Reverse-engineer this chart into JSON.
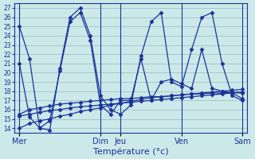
{
  "xlabel": "Température (°c)",
  "background_color": "#cce8e8",
  "grid_color": "#9ab8c8",
  "line_color": "#1a3399",
  "day_labels": [
    "Mer",
    "Dim",
    "Jeu",
    "Ven",
    "Sam"
  ],
  "day_positions": [
    0,
    8,
    10,
    16,
    22
  ],
  "ylim": [
    13.5,
    27.5
  ],
  "yticks": [
    14,
    15,
    16,
    17,
    18,
    19,
    20,
    21,
    22,
    23,
    24,
    25,
    26,
    27
  ],
  "num_points": 23,
  "series": [
    [
      25.0,
      21.5,
      14.0,
      13.8,
      20.5,
      26.0,
      27.0,
      24.0,
      17.5,
      16.0,
      15.5,
      16.5,
      21.8,
      25.5,
      26.5,
      19.0,
      18.5,
      22.5,
      26.0,
      26.5,
      21.0,
      17.5,
      17.0
    ],
    [
      21.0,
      15.2,
      14.0,
      14.8,
      20.2,
      25.5,
      26.5,
      23.5,
      16.5,
      15.5,
      17.0,
      17.0,
      21.5,
      17.0,
      19.0,
      19.3,
      18.8,
      18.3,
      22.5,
      18.3,
      18.0,
      17.8,
      17.2
    ],
    [
      15.5,
      16.0,
      16.2,
      16.4,
      16.6,
      16.7,
      16.8,
      16.9,
      17.0,
      17.1,
      17.2,
      17.2,
      17.3,
      17.4,
      17.4,
      17.5,
      17.6,
      17.7,
      17.7,
      17.8,
      17.8,
      17.9,
      17.9
    ],
    [
      15.3,
      15.5,
      15.7,
      15.9,
      16.0,
      16.2,
      16.3,
      16.4,
      16.5,
      16.6,
      16.7,
      16.8,
      16.9,
      17.0,
      17.1,
      17.2,
      17.3,
      17.4,
      17.5,
      17.6,
      17.7,
      17.8,
      17.8
    ],
    [
      14.0,
      14.5,
      14.8,
      15.0,
      15.3,
      15.5,
      15.8,
      16.0,
      16.2,
      16.5,
      16.7,
      16.9,
      17.1,
      17.3,
      17.4,
      17.5,
      17.6,
      17.7,
      17.8,
      17.9,
      18.0,
      18.1,
      18.2
    ]
  ]
}
